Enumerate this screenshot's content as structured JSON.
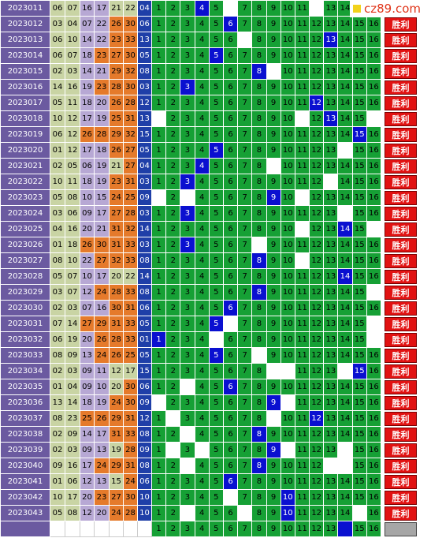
{
  "watermark": "cz89.com",
  "result_label": "胜利",
  "columns": [
    "1",
    "2",
    "3",
    "4",
    "5",
    "6",
    "7",
    "8",
    "9",
    "10",
    "11",
    "12",
    "13",
    "14",
    "15",
    "16"
  ],
  "rows": [
    {
      "issue": "2023011",
      "reds": [
        "06",
        "07",
        "16",
        "17",
        "21",
        "22"
      ],
      "blue": "04",
      "blank": [
        6,
        12,
        15,
        16
      ]
    },
    {
      "issue": "2023012",
      "reds": [
        "03",
        "04",
        "07",
        "22",
        "26",
        "30"
      ],
      "blue": "06",
      "blank": []
    },
    {
      "issue": "2023013",
      "reds": [
        "06",
        "10",
        "14",
        "22",
        "23",
        "33"
      ],
      "blue": "13",
      "blank": [
        7
      ]
    },
    {
      "issue": "2023014",
      "reds": [
        "06",
        "07",
        "18",
        "23",
        "27",
        "30"
      ],
      "blue": "05",
      "blank": []
    },
    {
      "issue": "2023015",
      "reds": [
        "02",
        "03",
        "14",
        "21",
        "29",
        "32"
      ],
      "blue": "08",
      "blank": [
        9
      ]
    },
    {
      "issue": "2023016",
      "reds": [
        "14",
        "16",
        "19",
        "23",
        "28",
        "30"
      ],
      "blue": "03",
      "blank": []
    },
    {
      "issue": "2023017",
      "reds": [
        "05",
        "11",
        "18",
        "20",
        "26",
        "28"
      ],
      "blue": "12",
      "blank": []
    },
    {
      "issue": "2023018",
      "reds": [
        "10",
        "12",
        "17",
        "19",
        "25",
        "31"
      ],
      "blue": "13",
      "blank": [
        1,
        11,
        16
      ]
    },
    {
      "issue": "2023019",
      "reds": [
        "06",
        "12",
        "26",
        "28",
        "29",
        "32"
      ],
      "blue": "15",
      "blank": []
    },
    {
      "issue": "2023020",
      "reds": [
        "01",
        "12",
        "17",
        "18",
        "26",
        "27"
      ],
      "blue": "05",
      "blank": [
        14
      ]
    },
    {
      "issue": "2023021",
      "reds": [
        "02",
        "05",
        "06",
        "19",
        "21",
        "27"
      ],
      "blue": "04",
      "blank": [
        9
      ]
    },
    {
      "issue": "2023022",
      "reds": [
        "10",
        "11",
        "18",
        "19",
        "23",
        "31"
      ],
      "blue": "03",
      "blank": [
        13
      ]
    },
    {
      "issue": "2023023",
      "reds": [
        "05",
        "08",
        "10",
        "15",
        "24",
        "25"
      ],
      "blue": "09",
      "blank": [
        1,
        3,
        11
      ]
    },
    {
      "issue": "2023024",
      "reds": [
        "03",
        "06",
        "09",
        "17",
        "27",
        "28"
      ],
      "blue": "03",
      "blank": [
        14
      ]
    },
    {
      "issue": "2023025",
      "reds": [
        "04",
        "16",
        "20",
        "21",
        "31",
        "32"
      ],
      "blue": "14",
      "blank": [
        11,
        16
      ]
    },
    {
      "issue": "2023026",
      "reds": [
        "01",
        "18",
        "26",
        "30",
        "31",
        "33"
      ],
      "blue": "03",
      "blank": [
        8
      ]
    },
    {
      "issue": "2023027",
      "reds": [
        "08",
        "10",
        "22",
        "27",
        "32",
        "33"
      ],
      "blue": "08",
      "blank": [
        11
      ]
    },
    {
      "issue": "2023028",
      "reds": [
        "05",
        "07",
        "10",
        "17",
        "20",
        "22"
      ],
      "blue": "14",
      "blank": []
    },
    {
      "issue": "2023029",
      "reds": [
        "03",
        "07",
        "12",
        "24",
        "28",
        "33"
      ],
      "blue": "08",
      "blank": [
        16
      ]
    },
    {
      "issue": "2023030",
      "reds": [
        "02",
        "03",
        "07",
        "16",
        "30",
        "31"
      ],
      "blue": "06",
      "blank": []
    },
    {
      "issue": "2023031",
      "reds": [
        "07",
        "14",
        "27",
        "29",
        "31",
        "33"
      ],
      "blue": "05",
      "blank": [
        6,
        16
      ]
    },
    {
      "issue": "2023032",
      "reds": [
        "06",
        "19",
        "20",
        "26",
        "28",
        "33"
      ],
      "blue": "01",
      "blank": [
        5,
        16
      ]
    },
    {
      "issue": "2023033",
      "reds": [
        "08",
        "09",
        "13",
        "24",
        "26",
        "25"
      ],
      "blue": "05",
      "blank": [
        8
      ]
    },
    {
      "issue": "2023034",
      "reds": [
        "02",
        "03",
        "09",
        "11",
        "12",
        "17"
      ],
      "blue": "15",
      "blank": [
        9,
        10,
        14
      ]
    },
    {
      "issue": "2023035",
      "reds": [
        "01",
        "04",
        "09",
        "10",
        "20",
        "30"
      ],
      "blue": "06",
      "blank": [
        3
      ]
    },
    {
      "issue": "2023036",
      "reds": [
        "13",
        "14",
        "18",
        "19",
        "24",
        "30"
      ],
      "blue": "09",
      "blank": [
        1,
        10
      ]
    },
    {
      "issue": "2023037",
      "reds": [
        "08",
        "23",
        "25",
        "26",
        "29",
        "31"
      ],
      "blue": "12",
      "blank": [
        2,
        9
      ]
    },
    {
      "issue": "2023038",
      "reds": [
        "02",
        "09",
        "14",
        "17",
        "31",
        "33"
      ],
      "blue": "08",
      "blank": [
        3
      ]
    },
    {
      "issue": "2023039",
      "reds": [
        "02",
        "03",
        "09",
        "13",
        "19",
        "28"
      ],
      "blue": "09",
      "blank": [
        2,
        4,
        10,
        14
      ]
    },
    {
      "issue": "2023040",
      "reds": [
        "09",
        "16",
        "17",
        "24",
        "29",
        "31"
      ],
      "blue": "08",
      "blank": [
        3,
        13,
        14
      ]
    },
    {
      "issue": "2023041",
      "reds": [
        "01",
        "06",
        "12",
        "13",
        "15",
        "24"
      ],
      "blue": "06",
      "blank": []
    },
    {
      "issue": "2023042",
      "reds": [
        "10",
        "17",
        "20",
        "23",
        "27",
        "30"
      ],
      "blue": "10",
      "blank": [
        6
      ]
    },
    {
      "issue": "2023043",
      "reds": [
        "05",
        "08",
        "12",
        "20",
        "24",
        "28"
      ],
      "blue": "10",
      "blank": [
        3,
        7,
        15
      ]
    }
  ],
  "footer_row": {
    "hit": 14
  }
}
